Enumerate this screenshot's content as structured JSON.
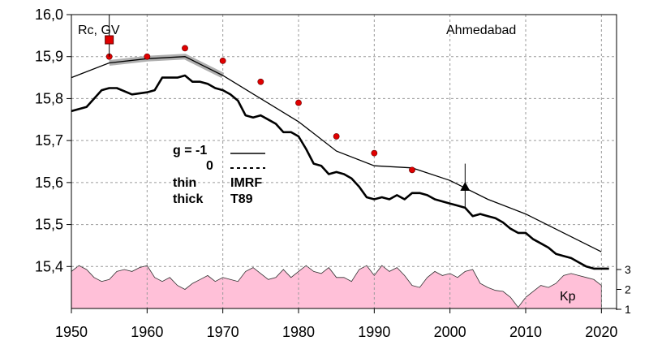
{
  "chart_data": {
    "type": "line",
    "title": "Ahmedabad",
    "ylabel": "Rc, GV",
    "xlim": [
      1950,
      2022
    ],
    "ylim": [
      15.3,
      16.0
    ],
    "x_ticks": [
      "1950",
      "1960",
      "1970",
      "1980",
      "1990",
      "2000",
      "2010",
      "2020"
    ],
    "y_ticks": [
      "15,4",
      "15,5",
      "15,6",
      "15,7",
      "15,8",
      "15,9",
      "16,0"
    ],
    "grid": true,
    "series": [
      {
        "name": "IMRF",
        "style": "thin",
        "x": [
          1950,
          1955,
          1960,
          1965,
          1970,
          1975,
          1980,
          1985,
          1990,
          1995,
          2000,
          2005,
          2010,
          2015,
          2020
        ],
        "values": [
          15.85,
          15.885,
          15.895,
          15.9,
          15.855,
          15.8,
          15.745,
          15.675,
          15.64,
          15.635,
          15.605,
          15.56,
          15.525,
          15.48,
          15.435
        ]
      },
      {
        "name": "T89",
        "style": "thick",
        "x": [
          1950,
          1952,
          1954,
          1955,
          1956,
          1958,
          1960,
          1961,
          1962,
          1963,
          1964,
          1965,
          1966,
          1967,
          1968,
          1969,
          1970,
          1971,
          1972,
          1973,
          1974,
          1975,
          1976,
          1977,
          1978,
          1979,
          1980,
          1981,
          1982,
          1983,
          1984,
          1985,
          1986,
          1987,
          1988,
          1989,
          1990,
          1991,
          1992,
          1993,
          1994,
          1995,
          1996,
          1997,
          1998,
          1999,
          2000,
          2001,
          2002,
          2003,
          2004,
          2005,
          2006,
          2007,
          2008,
          2009,
          2010,
          2011,
          2012,
          2013,
          2014,
          2015,
          2016,
          2017,
          2018,
          2019,
          2020,
          2021
        ],
        "values": [
          15.77,
          15.78,
          15.82,
          15.825,
          15.825,
          15.81,
          15.815,
          15.82,
          15.85,
          15.85,
          15.85,
          15.855,
          15.84,
          15.84,
          15.835,
          15.825,
          15.82,
          15.81,
          15.795,
          15.76,
          15.755,
          15.76,
          15.75,
          15.74,
          15.72,
          15.72,
          15.71,
          15.68,
          15.645,
          15.64,
          15.62,
          15.625,
          15.62,
          15.61,
          15.59,
          15.565,
          15.56,
          15.565,
          15.56,
          15.57,
          15.56,
          15.575,
          15.575,
          15.57,
          15.56,
          15.555,
          15.55,
          15.545,
          15.54,
          15.52,
          15.525,
          15.52,
          15.515,
          15.505,
          15.49,
          15.48,
          15.48,
          15.465,
          15.455,
          15.445,
          15.43,
          15.425,
          15.42,
          15.41,
          15.4,
          15.395,
          15.395,
          15.395
        ]
      }
    ],
    "observations": {
      "x": [
        1955,
        1960,
        1965,
        1970,
        1975,
        1980,
        1985,
        1990,
        1995
      ],
      "values": [
        15.9,
        15.9,
        15.92,
        15.89,
        15.84,
        15.79,
        15.71,
        15.67,
        15.63
      ]
    },
    "highlight_point": {
      "x": 1955,
      "value": 15.94
    },
    "triangle_point": {
      "x": 2002,
      "value": 15.59,
      "error_low": 15.54,
      "error_high": 15.645
    },
    "kp_axis": {
      "label": "Kp",
      "ticks": [
        "1",
        "2",
        "3"
      ]
    },
    "kp": {
      "x": [
        1950,
        1951,
        1952,
        1953,
        1954,
        1955,
        1956,
        1957,
        1958,
        1959,
        1960,
        1961,
        1962,
        1963,
        1964,
        1965,
        1966,
        1967,
        1968,
        1969,
        1970,
        1971,
        1972,
        1973,
        1974,
        1975,
        1976,
        1977,
        1978,
        1979,
        1980,
        1981,
        1982,
        1983,
        1984,
        1985,
        1986,
        1987,
        1988,
        1989,
        1990,
        1991,
        1992,
        1993,
        1994,
        1995,
        1996,
        1997,
        1998,
        1999,
        2000,
        2001,
        2002,
        2003,
        2004,
        2005,
        2006,
        2007,
        2008,
        2009,
        2010,
        2011,
        2012,
        2013,
        2014,
        2015,
        2016,
        2017,
        2018,
        2019,
        2020
      ],
      "values": [
        2.9,
        3.2,
        3.0,
        2.6,
        2.4,
        2.5,
        2.9,
        3.0,
        2.9,
        3.1,
        3.2,
        2.6,
        2.4,
        2.6,
        2.2,
        2.0,
        2.3,
        2.5,
        2.7,
        2.4,
        2.6,
        2.5,
        2.4,
        2.9,
        3.1,
        2.8,
        2.5,
        2.6,
        3.0,
        2.6,
        2.9,
        3.2,
        2.9,
        2.8,
        3.1,
        2.6,
        2.6,
        2.4,
        3.0,
        3.2,
        2.7,
        3.2,
        2.9,
        3.1,
        2.7,
        2.2,
        2.1,
        2.6,
        2.9,
        2.7,
        2.8,
        2.6,
        2.9,
        3.0,
        2.3,
        2.1,
        1.95,
        1.9,
        1.6,
        1.1,
        1.6,
        1.9,
        2.2,
        2.1,
        2.3,
        2.7,
        2.8,
        2.7,
        2.6,
        2.5,
        2.2
      ]
    }
  },
  "legend": {
    "g_label": "g  = -1",
    "zero_label": "0",
    "thin_label": "thin",
    "thick_label": "thick",
    "imrf_label": "IMRF",
    "t89_label": "T89"
  }
}
